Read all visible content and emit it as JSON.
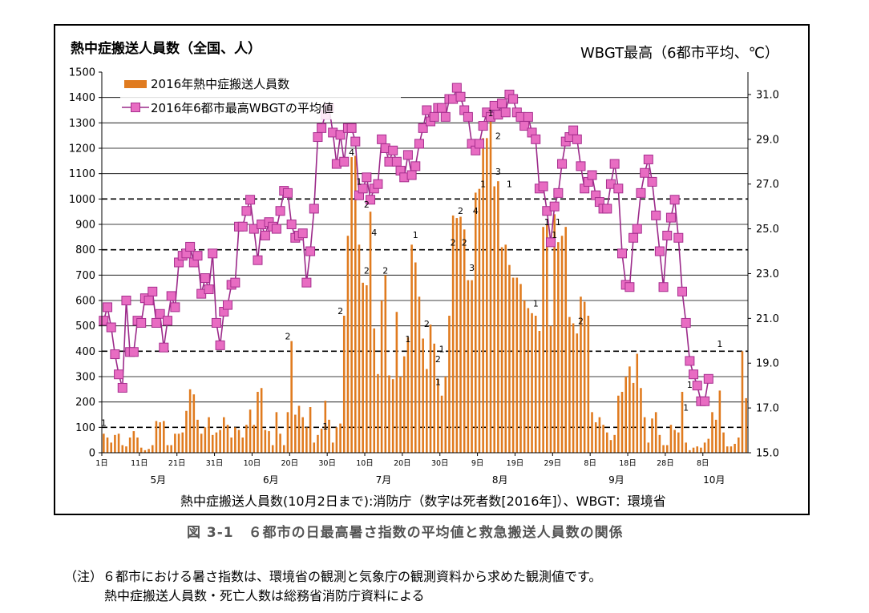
{
  "titles": {
    "left_axis_title": "熱中症搬送人員数（全国、人）",
    "right_axis_title": "WBGT最高（6都市平均、℃）",
    "source": "熱中症搬送人員数(10月2日まで):消防庁（数字は死者数[2016年]）、WBGT：環境省",
    "caption": "図 3-1　６都市の日最高暑さ指数の平均値と救急搬送人員数の関係",
    "note_line1": "（注）６都市における暑さ指数は、環境省の観測と気象庁の観測資料から求めた観測値です。",
    "note_line2": "熱中症搬送人員数・死亡人数は総務省消防庁資料による"
  },
  "colors": {
    "bar": "#e07b1f",
    "line": "#9c2a8a",
    "marker": "#e86cc2",
    "marker_edge": "#a62e8e",
    "grid": "#000000"
  },
  "chart_data": {
    "type": "bar",
    "legend": [
      {
        "label": "2016年熱中症搬送人員数",
        "kind": "bar"
      },
      {
        "label": "2016年6都市最高WBGTの平均値",
        "kind": "line"
      }
    ],
    "legend_position": "top-left",
    "left_axis": {
      "min": 0,
      "max": 1500,
      "step": 100,
      "ticks": [
        "0",
        "100",
        "200",
        "300",
        "400",
        "500",
        "600",
        "700",
        "800",
        "900",
        "1000",
        "1100",
        "1200",
        "1300",
        "1400",
        "1500"
      ]
    },
    "right_axis": {
      "min": 15.0,
      "max": 32.0,
      "ticks": [
        {
          "v": 15,
          "label": "15.0"
        },
        {
          "v": 17,
          "label": "17.0"
        },
        {
          "v": 19,
          "label": "19.0"
        },
        {
          "v": 21,
          "label": "21.0"
        },
        {
          "v": 23,
          "label": "23.0"
        },
        {
          "v": 25,
          "label": "25.0"
        },
        {
          "v": 27,
          "label": "27.0"
        },
        {
          "v": 29,
          "label": "29.0"
        },
        {
          "v": 31,
          "label": "31.0"
        }
      ]
    },
    "dashed_gridlines": [
      100,
      400,
      800,
      1000
    ],
    "solid_gridlines": [
      200,
      300,
      500,
      600,
      700,
      900,
      1100,
      1200,
      1300,
      1400
    ],
    "x_tick_labels": [
      {
        "day": 0,
        "label": "1日"
      },
      {
        "day": 10,
        "label": "11日"
      },
      {
        "day": 20,
        "label": "21日"
      },
      {
        "day": 30,
        "label": "31日"
      },
      {
        "day": 40,
        "label": "10日"
      },
      {
        "day": 50,
        "label": "20日"
      },
      {
        "day": 60,
        "label": "30日"
      },
      {
        "day": 70,
        "label": "10日"
      },
      {
        "day": 80,
        "label": "20日"
      },
      {
        "day": 90,
        "label": "30日"
      },
      {
        "day": 100,
        "label": "9日"
      },
      {
        "day": 110,
        "label": "19日"
      },
      {
        "day": 120,
        "label": "29日"
      },
      {
        "day": 130,
        "label": "8日"
      },
      {
        "day": 140,
        "label": "18日"
      },
      {
        "day": 150,
        "label": "28日"
      },
      {
        "day": 160,
        "label": "8日"
      }
    ],
    "month_labels": [
      {
        "day": 15,
        "label": "5月"
      },
      {
        "day": 45,
        "label": "6月"
      },
      {
        "day": 75,
        "label": "7月"
      },
      {
        "day": 106,
        "label": "8月"
      },
      {
        "day": 137,
        "label": "9月"
      },
      {
        "day": 163,
        "label": "10月"
      }
    ],
    "bar_values": [
      75,
      60,
      40,
      70,
      75,
      30,
      25,
      60,
      85,
      60,
      20,
      10,
      15,
      30,
      125,
      120,
      125,
      30,
      30,
      75,
      75,
      80,
      165,
      250,
      230,
      130,
      75,
      100,
      140,
      70,
      80,
      90,
      140,
      110,
      60,
      100,
      90,
      60,
      110,
      170,
      110,
      240,
      255,
      90,
      85,
      30,
      160,
      75,
      30,
      160,
      440,
      150,
      185,
      140,
      100,
      180,
      40,
      70,
      95,
      205,
      130,
      40,
      100,
      115,
      540,
      855,
      1165,
      1170,
      820,
      670,
      660,
      950,
      490,
      310,
      600,
      700,
      305,
      290,
      555,
      300,
      380,
      455,
      820,
      750,
      615,
      450,
      330,
      505,
      430,
      290,
      225,
      300,
      540,
      935,
      925,
      930,
      880,
      680,
      680,
      1025,
      1040,
      1240,
      1240,
      1330,
      1050,
      1070,
      810,
      820,
      740,
      690,
      690,
      665,
      600,
      570,
      550,
      540,
      480,
      890,
      900,
      500,
      940,
      830,
      855,
      890,
      535,
      510,
      470,
      615,
      595,
      540,
      160,
      120,
      140,
      110,
      80,
      50,
      70,
      225,
      240,
      300,
      340,
      275,
      390,
      255,
      140,
      40,
      135,
      160,
      70,
      30,
      30,
      110,
      90,
      80,
      240,
      40,
      10,
      20,
      25,
      20,
      40,
      55,
      160,
      130,
      245,
      80,
      25,
      25,
      35,
      60,
      400,
      215
    ],
    "wbgt_values": [
      20.9,
      21.5,
      20.6,
      19.4,
      18.5,
      17.9,
      21.8,
      19.5,
      19.5,
      20.9,
      20.8,
      21.9,
      21.8,
      22.2,
      20.8,
      21.2,
      19.7,
      20.9,
      22.0,
      21.5,
      23.5,
      23.8,
      23.9,
      24.2,
      23.5,
      23.8,
      22.1,
      22.8,
      22.3,
      23.9,
      20.8,
      19.8,
      21.3,
      21.6,
      22.5,
      22.6,
      25.1,
      25.1,
      25.8,
      26.3,
      25.0,
      23.6,
      25.2,
      24.7,
      25.3,
      25.1,
      25.0,
      25.8,
      26.7,
      26.6,
      25.2,
      24.6,
      24.7,
      24.8,
      22.6,
      24.0,
      25.9,
      29.1,
      29.5,
      30.1,
      30.4,
      29.3,
      27.9,
      29.2,
      28.0,
      29.5,
      29.5,
      28.9,
      26.5,
      26.8,
      27.3,
      26.3,
      26.8,
      27.0,
      29.0,
      28.6,
      28.0,
      28.5,
      28.0,
      27.6,
      27.3,
      28.3,
      27.4,
      27.8,
      28.8,
      29.5,
      30.3,
      29.8,
      30.0,
      30.4,
      30.4,
      30.0,
      30.8,
      30.8,
      31.3,
      30.9,
      30.3,
      30.0,
      28.8,
      28.5,
      28.8,
      29.6,
      30.2,
      30.0,
      30.5,
      30.1,
      30.6,
      30.2,
      31.0,
      30.8,
      30.2,
      30.0,
      29.6,
      30.0,
      29.3,
      29.0,
      26.8,
      26.9,
      25.8,
      24.4,
      26.0,
      26.6,
      27.9,
      28.9,
      29.1,
      29.4,
      29.0,
      27.8,
      26.8,
      27.1,
      27.4,
      26.5,
      26.2,
      25.9,
      25.9,
      27.0,
      27.9,
      26.8,
      23.9,
      22.5,
      22.4,
      24.6,
      25.0,
      26.6,
      27.5,
      28.1,
      27.1,
      25.6,
      24.0,
      22.4,
      24.7,
      25.5,
      26.3,
      24.6,
      22.2,
      20.8,
      19.1,
      18.5,
      18.0,
      17.3,
      17.3,
      18.3
    ],
    "death_labels": [
      {
        "day": 0,
        "value": 100,
        "label": "1"
      },
      {
        "day": 49,
        "value": 440,
        "label": "2"
      },
      {
        "day": 59,
        "value": 85,
        "label": "1"
      },
      {
        "day": 63,
        "value": 540,
        "label": "2"
      },
      {
        "day": 66,
        "value": 1165,
        "label": "4"
      },
      {
        "day": 68,
        "value": 1050,
        "label": "1"
      },
      {
        "day": 70,
        "value": 960,
        "label": "2"
      },
      {
        "day": 72,
        "value": 850,
        "label": "4"
      },
      {
        "day": 70,
        "value": 700,
        "label": "2"
      },
      {
        "day": 75,
        "value": 700,
        "label": "2"
      },
      {
        "day": 81,
        "value": 430,
        "label": "1"
      },
      {
        "day": 83,
        "value": 840,
        "label": "1"
      },
      {
        "day": 86,
        "value": 490,
        "label": "2"
      },
      {
        "day": 89,
        "value": 350,
        "label": "2"
      },
      {
        "day": 90,
        "value": 390,
        "label": "1"
      },
      {
        "day": 89,
        "value": 260,
        "label": "1"
      },
      {
        "day": 93,
        "value": 810,
        "label": "2"
      },
      {
        "day": 95,
        "value": 935,
        "label": "2"
      },
      {
        "day": 96,
        "value": 810,
        "label": "2"
      },
      {
        "day": 99,
        "value": 935,
        "label": "4"
      },
      {
        "day": 98,
        "value": 710,
        "label": "3"
      },
      {
        "day": 101,
        "value": 1040,
        "label": "1"
      },
      {
        "day": 103,
        "value": 1320,
        "label": "1"
      },
      {
        "day": 105,
        "value": 1230,
        "label": "2"
      },
      {
        "day": 105,
        "value": 1090,
        "label": "3"
      },
      {
        "day": 108,
        "value": 1040,
        "label": "1"
      },
      {
        "day": 115,
        "value": 570,
        "label": "1"
      },
      {
        "day": 118,
        "value": 890,
        "label": "1"
      },
      {
        "day": 120,
        "value": 840,
        "label": "1"
      },
      {
        "day": 121,
        "value": 890,
        "label": "1"
      },
      {
        "day": 127,
        "value": 500,
        "label": "2"
      },
      {
        "day": 155,
        "value": 160,
        "label": "1"
      },
      {
        "day": 156,
        "value": 250,
        "label": "1"
      },
      {
        "day": 164,
        "value": 410,
        "label": "1"
      }
    ]
  }
}
